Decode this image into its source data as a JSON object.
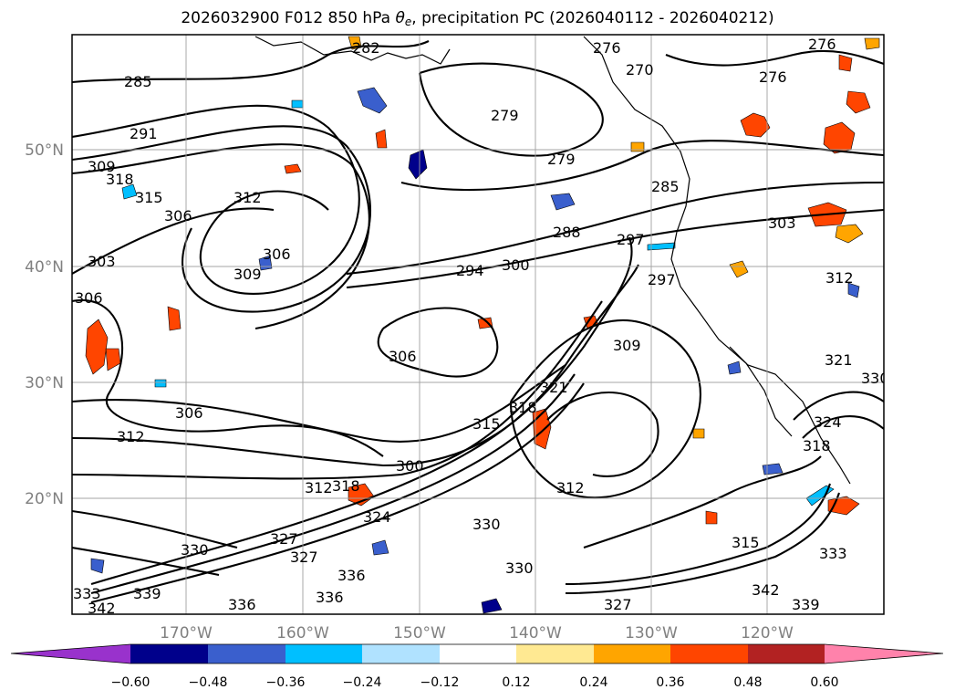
{
  "figure": {
    "title": "2026032900 F012 850 hPa θe, precipitation PC (2026040112 - 2026040212)",
    "title_parts": {
      "prefix": "2026032900 F012 850 hPa ",
      "theta": "θ",
      "sub": "e",
      "suffix": ", precipitation PC (2026040112 - 2026040212)"
    }
  },
  "map": {
    "lon_labels": [
      "170°W",
      "160°W",
      "150°W",
      "140°W",
      "130°W",
      "120°W"
    ],
    "lat_labels": [
      "50°N",
      "40°N",
      "30°N",
      "20°N"
    ],
    "contour_labels": [
      "285",
      "291",
      "318",
      "309",
      "315",
      "312",
      "306",
      "303",
      "306",
      "309",
      "306",
      "282",
      "276",
      "279",
      "279",
      "270",
      "276",
      "276",
      "285",
      "288",
      "297",
      "297",
      "294",
      "300",
      "303",
      "312",
      "306",
      "312",
      "306",
      "300",
      "309",
      "321",
      "318",
      "312",
      "315",
      "312",
      "318",
      "324",
      "327",
      "330",
      "327",
      "336",
      "336",
      "336",
      "333",
      "342",
      "339",
      "330",
      "330",
      "327",
      "342",
      "339",
      "318",
      "324",
      "330",
      "321",
      "315",
      "333"
    ],
    "gridlines": true,
    "coastline_color": "#000000"
  },
  "colorbar": {
    "ticks": [
      "−0.60",
      "−0.48",
      "−0.36",
      "−0.24",
      "−0.12",
      "0.12",
      "0.24",
      "0.36",
      "0.48",
      "0.60"
    ],
    "colors": [
      "#9932CC",
      "#00008B",
      "#3A5FCD",
      "#00BFFF",
      "#B0E2FF",
      "#FFFFFF",
      "#FFE992",
      "#FFA500",
      "#FF4500",
      "#B22222",
      "#FF82AB"
    ]
  }
}
